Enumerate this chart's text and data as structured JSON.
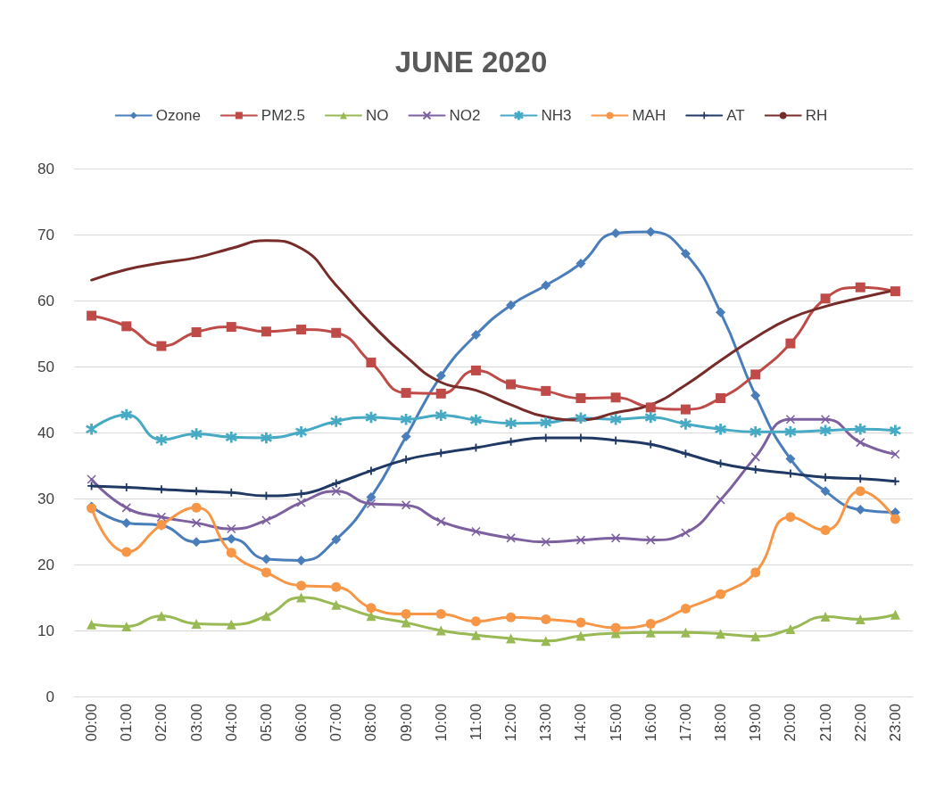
{
  "chart_data": {
    "type": "line",
    "title": "JUNE 2020",
    "categories": [
      "00:00",
      "01:00",
      "02:00",
      "03:00",
      "04:00",
      "05:00",
      "06:00",
      "07:00",
      "08:00",
      "09:00",
      "10:00",
      "11:00",
      "12:00",
      "13:00",
      "14:00",
      "15:00",
      "16:00",
      "17:00",
      "18:00",
      "19:00",
      "20:00",
      "21:00",
      "22:00",
      "23:00"
    ],
    "series": [
      {
        "name": "Ozone",
        "color": "#4a7ebb",
        "marker": "diamond",
        "values": [
          28.8,
          26.3,
          25.9,
          23.4,
          23.9,
          20.8,
          20.6,
          23.8,
          30.2,
          39.4,
          48.6,
          54.8,
          59.3,
          62.3,
          65.6,
          70.2,
          70.4,
          67.1,
          58.2,
          45.6,
          36.0,
          31.1,
          28.3,
          27.9
        ]
      },
      {
        "name": "PM2.5",
        "color": "#be4b48",
        "marker": "square",
        "values": [
          57.7,
          56.1,
          53.1,
          55.2,
          56.0,
          55.3,
          55.6,
          55.1,
          50.6,
          46.0,
          45.9,
          49.4,
          47.3,
          46.3,
          45.2,
          45.3,
          43.8,
          43.5,
          45.2,
          48.8,
          53.5,
          60.3,
          62.0,
          61.4
        ]
      },
      {
        "name": "NO",
        "color": "#98b954",
        "marker": "triangle",
        "values": [
          10.9,
          10.6,
          12.2,
          11.0,
          10.9,
          12.2,
          15.0,
          13.9,
          12.2,
          11.2,
          10.0,
          9.3,
          8.8,
          8.4,
          9.2,
          9.6,
          9.7,
          9.7,
          9.5,
          9.1,
          10.2,
          12.1,
          11.7,
          12.4
        ]
      },
      {
        "name": "NO2",
        "color": "#7d60a0",
        "marker": "cross",
        "values": [
          32.9,
          28.6,
          27.2,
          26.3,
          25.4,
          26.7,
          29.4,
          31.1,
          29.2,
          29.0,
          26.5,
          25.0,
          24.0,
          23.4,
          23.7,
          24.0,
          23.7,
          24.8,
          29.8,
          36.3,
          42.0,
          42.0,
          38.5,
          36.7
        ]
      },
      {
        "name": "NH3",
        "color": "#46aac5",
        "marker": "star",
        "values": [
          40.5,
          42.7,
          38.9,
          39.8,
          39.3,
          39.2,
          40.1,
          41.7,
          42.3,
          42.0,
          42.6,
          41.9,
          41.4,
          41.5,
          42.2,
          42.0,
          42.3,
          41.3,
          40.5,
          40.1,
          40.1,
          40.3,
          40.5,
          40.3
        ]
      },
      {
        "name": "MAH",
        "color": "#f79646",
        "marker": "circle",
        "values": [
          28.5,
          21.9,
          26.0,
          28.6,
          21.8,
          18.8,
          16.8,
          16.6,
          13.4,
          12.5,
          12.5,
          11.4,
          12.0,
          11.7,
          11.2,
          10.4,
          11.0,
          13.3,
          15.5,
          18.8,
          27.2,
          25.2,
          31.1,
          26.9
        ]
      },
      {
        "name": "AT",
        "color": "#203864",
        "marker": "plus",
        "values": [
          31.9,
          31.7,
          31.4,
          31.1,
          30.9,
          30.4,
          30.7,
          32.3,
          34.2,
          35.9,
          36.9,
          37.7,
          38.6,
          39.2,
          39.2,
          38.8,
          38.2,
          36.8,
          35.3,
          34.4,
          33.8,
          33.2,
          33.0,
          32.6
        ]
      },
      {
        "name": "RH",
        "color": "#772c2a",
        "marker": "none",
        "values": [
          63.1,
          64.7,
          65.7,
          66.5,
          67.9,
          69.1,
          67.9,
          62.3,
          56.5,
          51.5,
          47.6,
          46.4,
          44.2,
          42.4,
          41.9,
          43.0,
          44.2,
          47.2,
          50.9,
          54.4,
          57.3,
          59.1,
          60.4,
          61.6
        ]
      }
    ],
    "ylim": [
      0,
      80
    ],
    "yticks": [
      0,
      10,
      20,
      30,
      40,
      50,
      60,
      70,
      80
    ],
    "grid": "y",
    "legend": "top"
  }
}
